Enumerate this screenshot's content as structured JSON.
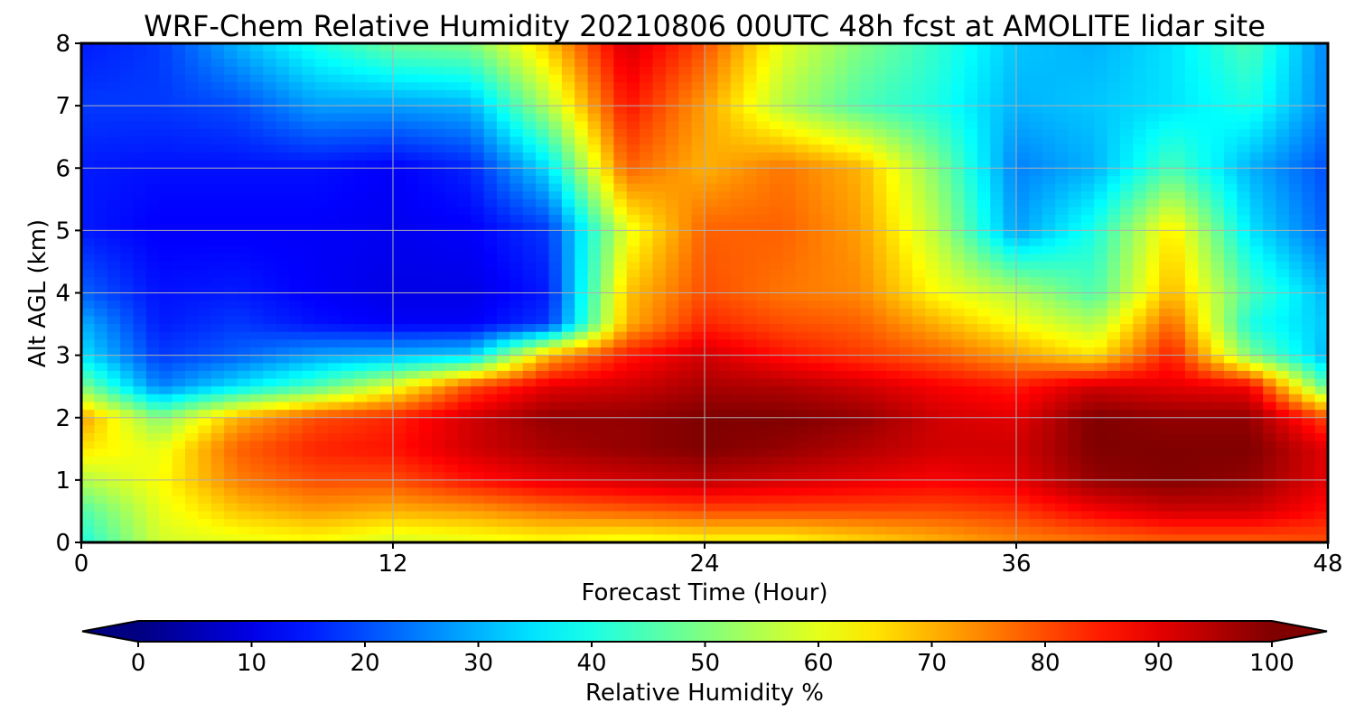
{
  "chart_data": {
    "type": "heatmap",
    "title": "WRF-Chem Relative Humidity 20210806 00UTC 48h fcst at AMOLITE lidar site",
    "xlabel": "Forecast Time (Hour)",
    "ylabel": "Alt AGL (km)",
    "xlim": [
      0,
      48
    ],
    "ylim": [
      0,
      8
    ],
    "xticks": [
      0,
      12,
      24,
      36,
      48
    ],
    "yticks": [
      0,
      1,
      2,
      3,
      4,
      5,
      6,
      7,
      8
    ],
    "grid": true,
    "colormap": "jet",
    "x_hours": [
      0,
      3,
      6,
      9,
      12,
      15,
      18,
      21,
      24,
      27,
      30,
      33,
      36,
      39,
      42,
      45,
      48
    ],
    "y_km": [
      0,
      0.5,
      1,
      1.5,
      2,
      2.5,
      3,
      3.5,
      4,
      5,
      6,
      7,
      8
    ],
    "values_percent": [
      [
        40,
        58,
        60,
        62,
        58,
        60,
        62,
        60,
        62,
        62,
        66,
        70,
        74,
        76,
        78,
        78,
        80
      ],
      [
        45,
        60,
        68,
        72,
        70,
        72,
        76,
        78,
        80,
        80,
        80,
        80,
        82,
        88,
        92,
        92,
        86
      ],
      [
        55,
        62,
        75,
        80,
        80,
        86,
        90,
        92,
        94,
        92,
        90,
        88,
        90,
        98,
        100,
        98,
        90
      ],
      [
        65,
        60,
        78,
        84,
        86,
        92,
        96,
        98,
        100,
        98,
        95,
        92,
        92,
        100,
        100,
        100,
        90
      ],
      [
        72,
        50,
        70,
        80,
        84,
        92,
        98,
        98,
        100,
        100,
        98,
        92,
        90,
        100,
        98,
        98,
        80
      ],
      [
        50,
        25,
        35,
        45,
        60,
        80,
        90,
        92,
        96,
        95,
        92,
        88,
        85,
        92,
        90,
        88,
        45
      ],
      [
        35,
        18,
        22,
        28,
        30,
        33,
        70,
        85,
        92,
        86,
        82,
        78,
        72,
        65,
        85,
        50,
        30
      ],
      [
        30,
        15,
        18,
        14,
        12,
        12,
        18,
        70,
        84,
        80,
        78,
        70,
        62,
        55,
        78,
        40,
        32
      ],
      [
        22,
        14,
        15,
        12,
        10,
        10,
        15,
        68,
        80,
        76,
        74,
        62,
        55,
        45,
        70,
        45,
        30
      ],
      [
        15,
        12,
        12,
        12,
        11,
        12,
        18,
        60,
        78,
        78,
        72,
        55,
        28,
        40,
        65,
        35,
        22
      ],
      [
        15,
        14,
        14,
        14,
        12,
        16,
        35,
        78,
        70,
        76,
        70,
        50,
        25,
        30,
        45,
        30,
        20
      ],
      [
        18,
        18,
        20,
        28,
        28,
        30,
        55,
        86,
        72,
        55,
        45,
        40,
        30,
        32,
        35,
        40,
        25
      ],
      [
        15,
        18,
        30,
        40,
        48,
        50,
        68,
        92,
        80,
        60,
        50,
        42,
        32,
        30,
        35,
        45,
        25
      ]
    ],
    "colorbar": {
      "label": "Relative Humidity %",
      "range": [
        0,
        100
      ],
      "ticks": [
        "0",
        "10",
        "20",
        "30",
        "40",
        "50",
        "60",
        "70",
        "80",
        "90",
        "100"
      ],
      "extend": "both"
    }
  }
}
